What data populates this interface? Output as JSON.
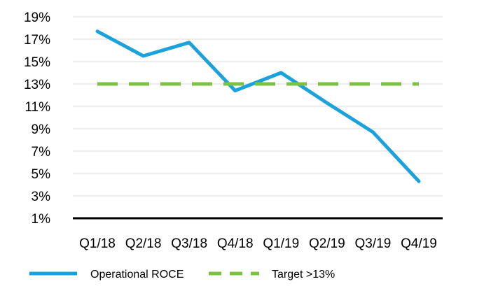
{
  "chart_data": {
    "type": "line",
    "categories": [
      "Q1/18",
      "Q2/18",
      "Q3/18",
      "Q4/18",
      "Q1/19",
      "Q2/19",
      "Q3/19",
      "Q4/19"
    ],
    "series": [
      {
        "name": "Operational ROCE",
        "values": [
          17.7,
          15.5,
          16.7,
          12.4,
          14.0,
          11.3,
          8.7,
          4.3
        ],
        "color": "#1ba1dc",
        "style": "solid"
      },
      {
        "name": "Target >13%",
        "values": [
          13,
          13,
          13,
          13,
          13,
          13,
          13,
          13
        ],
        "color": "#7cc242",
        "style": "dashed"
      }
    ],
    "ylim": [
      1,
      19
    ],
    "yticks": [
      "1%",
      "3%",
      "5%",
      "7%",
      "9%",
      "11%",
      "13%",
      "15%",
      "17%",
      "19%"
    ],
    "grid": true,
    "legend_position": "bottom",
    "title": "",
    "xlabel": "",
    "ylabel": ""
  }
}
